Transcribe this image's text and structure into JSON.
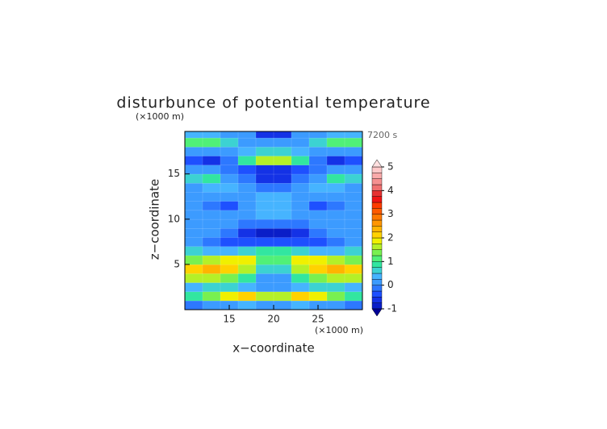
{
  "chart_data": {
    "type": "contour",
    "title": "disturbunce of potential temperature",
    "y_unit": "(×1000 m)",
    "x_unit": "(×1000 m)",
    "time_label": "7200 s",
    "xlabel": "x−coordinate",
    "ylabel": "z−coordinate",
    "xlim": [
      10,
      30
    ],
    "ylim": [
      0,
      19.7
    ],
    "xticks": [
      15,
      20,
      25
    ],
    "yticks": [
      5,
      10,
      15
    ],
    "x": [
      11,
      13,
      15,
      17,
      19,
      21,
      23,
      25,
      27,
      29
    ],
    "z": [
      0.5,
      1.5,
      2.5,
      3.5,
      4.5,
      5.5,
      6.5,
      7.5,
      8.5,
      9.5,
      10.5,
      11.5,
      12.5,
      13.5,
      14.5,
      15.5,
      16.5,
      17.5,
      18.5,
      19.5
    ],
    "values": [
      [
        -0.25,
        0,
        0,
        0.25,
        0,
        0,
        0.25,
        0,
        0,
        -0.25
      ],
      [
        0.75,
        1.25,
        1.75,
        2,
        1.5,
        1.5,
        2,
        1.75,
        1.25,
        0.75
      ],
      [
        0.25,
        0.5,
        0.5,
        0.25,
        0,
        0,
        0.25,
        0.5,
        0.5,
        0.25
      ],
      [
        1.5,
        1.5,
        1.25,
        0.75,
        0,
        0,
        0.75,
        1.25,
        1.5,
        1.5
      ],
      [
        2,
        2.25,
        2,
        1.5,
        0.5,
        0.5,
        1.5,
        2,
        2.25,
        2
      ],
      [
        1.25,
        1.5,
        1.75,
        1.75,
        1,
        1,
        1.75,
        1.75,
        1.5,
        1.25
      ],
      [
        0.5,
        0.25,
        0.25,
        0.5,
        0.75,
        0.75,
        0.5,
        0.25,
        0.25,
        0.5
      ],
      [
        0,
        -0.25,
        -0.5,
        -0.5,
        -0.5,
        -0.5,
        -0.5,
        -0.5,
        -0.25,
        0
      ],
      [
        0,
        0,
        -0.25,
        -0.75,
        -1,
        -1,
        -0.75,
        -0.25,
        0,
        0
      ],
      [
        0,
        0,
        0,
        -0.25,
        -0.25,
        -0.25,
        -0.25,
        0,
        0,
        0
      ],
      [
        0,
        0,
        0,
        0,
        0.25,
        0.25,
        0,
        0,
        0,
        0
      ],
      [
        0,
        -0.25,
        -0.5,
        0,
        0.25,
        0.25,
        0,
        -0.5,
        -0.25,
        0
      ],
      [
        0,
        0,
        0,
        0,
        0.25,
        0.25,
        0,
        0,
        0,
        0
      ],
      [
        0,
        0.25,
        0.25,
        0,
        -0.25,
        -0.25,
        0,
        0.25,
        0.25,
        0
      ],
      [
        0.5,
        0.75,
        0,
        -0.25,
        -0.75,
        -0.75,
        -0.25,
        0,
        0.75,
        0.5
      ],
      [
        0,
        0,
        -0.25,
        -0.5,
        -0.75,
        -0.75,
        -0.5,
        -0.25,
        0,
        0
      ],
      [
        -0.5,
        -0.75,
        -0.25,
        0.75,
        1.5,
        1.5,
        0.75,
        -0.25,
        -0.75,
        -0.5
      ],
      [
        0,
        0,
        0,
        0.25,
        0.5,
        0.5,
        0.25,
        0,
        0,
        0
      ],
      [
        1,
        1,
        0.5,
        0,
        0,
        0,
        0,
        0.5,
        1,
        1
      ],
      [
        0.25,
        0.25,
        0,
        0,
        -0.75,
        -0.75,
        0,
        0,
        0.25,
        0.25
      ]
    ],
    "levels": [
      -1,
      -0.75,
      -0.5,
      -0.25,
      0,
      0.25,
      0.5,
      0.75,
      1,
      1.25,
      1.5,
      1.75,
      2,
      2.25,
      2.5,
      2.75,
      3,
      3.25,
      3.5,
      3.75,
      4,
      4.25,
      4.5,
      4.75,
      5
    ],
    "colors": [
      "#0a1ec8",
      "#1432e6",
      "#1e50ff",
      "#2d78ff",
      "#3c9bff",
      "#46b4ff",
      "#3cd2d2",
      "#32e6a0",
      "#50f078",
      "#78f050",
      "#b4f028",
      "#f0f000",
      "#ffd200",
      "#ffb400",
      "#ff9600",
      "#ff7800",
      "#ff5a00",
      "#ff3c00",
      "#f01414",
      "#e63232",
      "#f07070",
      "#f59090",
      "#faaaaa",
      "#ffc8c8"
    ],
    "under_color": "#000096",
    "over_color": "#ffe0e0",
    "cbar_ticks": [
      -1,
      0,
      1,
      2,
      3,
      4,
      5
    ]
  }
}
